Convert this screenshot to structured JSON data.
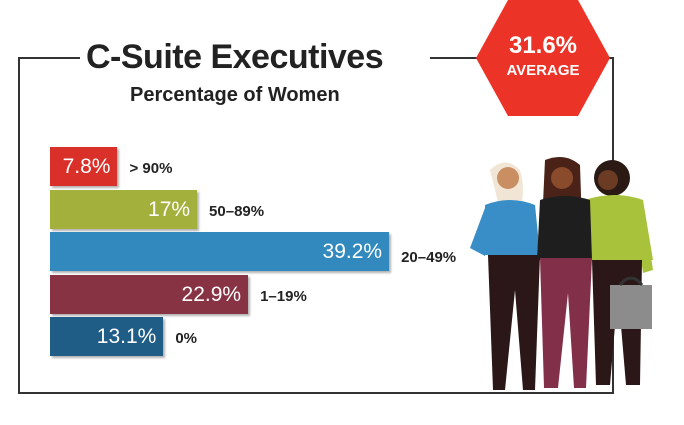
{
  "chart_data": {
    "type": "bar",
    "orientation": "horizontal",
    "title": "C-Suite Executives",
    "subtitle": "Percentage of Women",
    "categories": [
      "> 90%",
      "50–89%",
      "20–49%",
      "1–19%",
      "0%"
    ],
    "values": [
      7.8,
      17,
      39.2,
      22.9,
      13.1
    ],
    "value_labels": [
      "7.8%",
      "17%",
      "39.2%",
      "22.9%",
      "13.1%"
    ],
    "colors": [
      "#d9302a",
      "#a4b03c",
      "#3189bd",
      "#873343",
      "#1f5c86"
    ],
    "grid": false,
    "annotation": {
      "value": "31.6%",
      "label": "AVERAGE",
      "color": "#ec3327"
    }
  }
}
